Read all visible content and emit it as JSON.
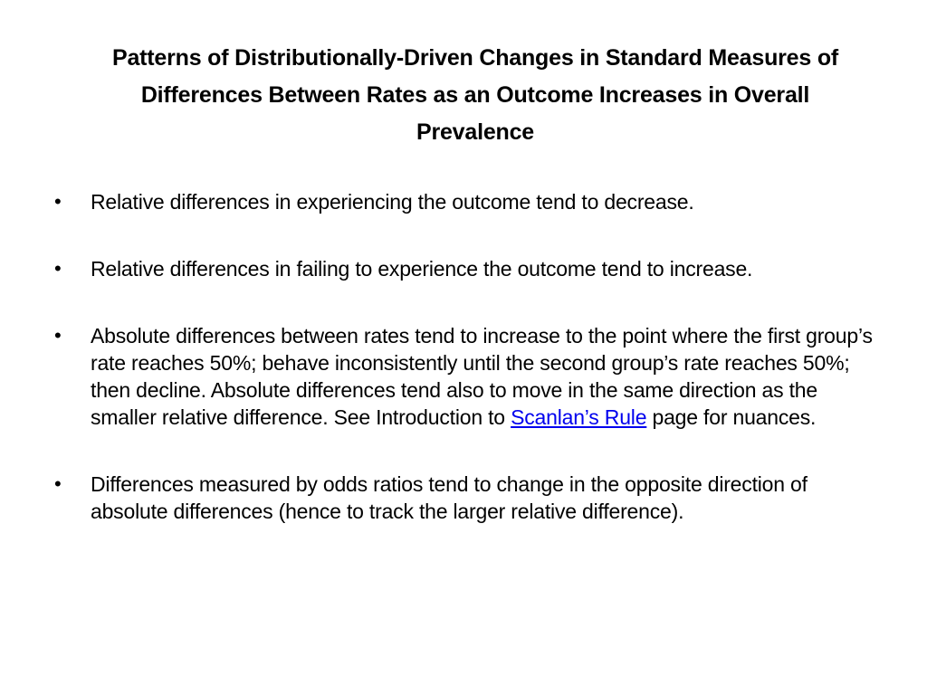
{
  "slide": {
    "title": "Patterns of Distributionally-Driven Changes in Standard Measures of Differences Between Rates as an Outcome Increases in Overall Prevalence",
    "bullet_glyph": "•",
    "bullets": [
      {
        "text": "Relative differences in experiencing the outcome tend to decrease."
      },
      {
        "text": "Relative differences in failing to experience the outcome tend to increase."
      },
      {
        "text_before": "Absolute differences between rates tend to increase to the point where the first group’s rate reaches 50%; behave inconsistently until the second group’s rate reaches 50%; then decline.  Absolute differences tend also to move in the same direction as the smaller relative difference.  See Introduction to ",
        "link_text": "Scanlan’s Rule",
        "text_after": " page for nuances."
      },
      {
        "text": "Differences measured by odds ratios tend to change in the opposite direction of absolute differences (hence to track the larger relative difference)."
      }
    ]
  },
  "colors": {
    "text": "#000000",
    "link": "#0000ee",
    "background": "#ffffff"
  }
}
